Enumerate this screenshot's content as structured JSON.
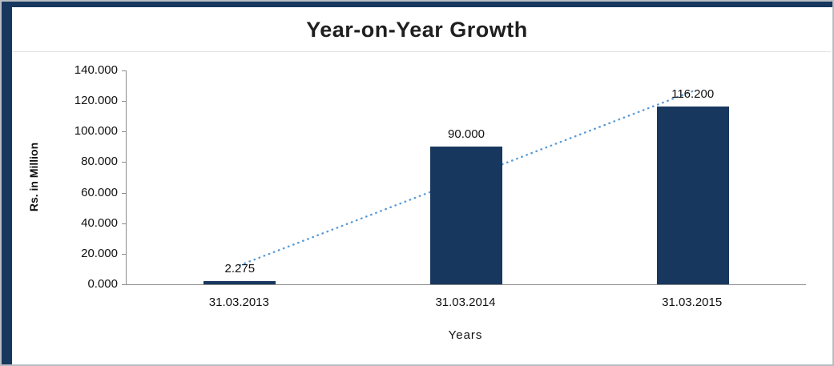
{
  "chart_data": {
    "type": "bar",
    "title": "Year-on-Year Growth",
    "categories": [
      "31.03.2013",
      "31.03.2014",
      "31.03.2015"
    ],
    "values": [
      2.275,
      90.0,
      116.2
    ],
    "data_labels": [
      "2.275",
      "90.000",
      "116.200"
    ],
    "xlabel": "Years",
    "ylabel": "Rs. in Million",
    "ylim": [
      0,
      140
    ],
    "ytick_step": 20,
    "ytick_labels": [
      "0.000",
      "20.000",
      "40.000",
      "60.000",
      "80.000",
      "100.000",
      "120.000",
      "140.000"
    ],
    "grid": false,
    "legend": "none",
    "bar_color": "#17375e",
    "trendline": true,
    "trendline_color": "#5b9bd5",
    "frame_accent_color": "#17375e"
  }
}
